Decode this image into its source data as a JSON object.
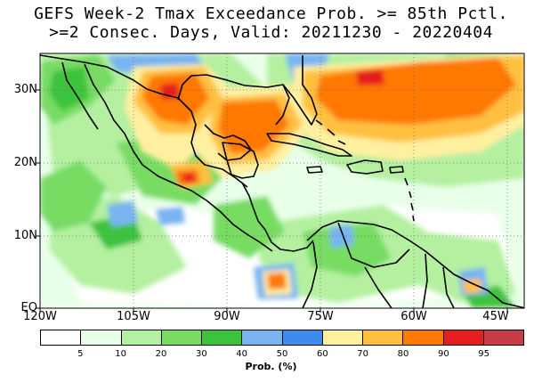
{
  "title": {
    "line1": "GEFS Week-2 Tmax Exceedance Prob. >= 85th Pctl.",
    "line2": ">=2 Consec. Days, Valid: 20211230 - 20220404"
  },
  "lat_labels": [
    "30N",
    "20N",
    "10N",
    "EQ"
  ],
  "lon_labels": [
    "120W",
    "105W",
    "90W",
    "75W",
    "60W",
    "45W"
  ],
  "colorbar": {
    "label": "Prob. (%)",
    "ticks": [
      "5",
      "10",
      "20",
      "30",
      "40",
      "50",
      "60",
      "70",
      "80",
      "90",
      "95"
    ],
    "colors": [
      "#ffffff",
      "#e8ffe8",
      "#b4f0a0",
      "#78dc64",
      "#3cc33c",
      "#78b4f0",
      "#3c8cf0",
      "#fff0a0",
      "#ffc040",
      "#ff7800",
      "#e61e1e",
      "#c83c46"
    ]
  },
  "map": {
    "region": "Mexico, Central America, Caribbean, northern South America",
    "lat_range": [
      "EQ",
      "35N"
    ],
    "lon_range": [
      "120W",
      "42W"
    ]
  }
}
